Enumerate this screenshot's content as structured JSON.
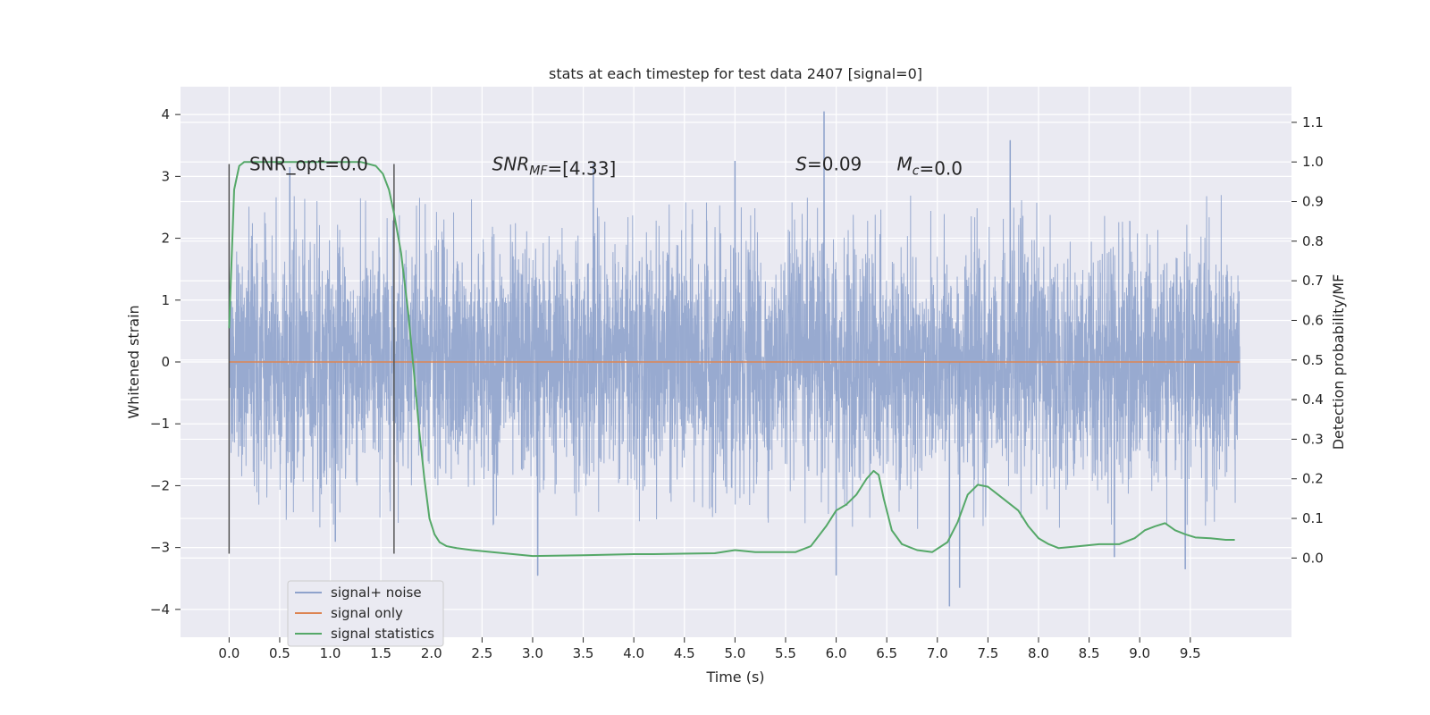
{
  "chart_data": {
    "type": "line",
    "title": "stats at each timestep for test data 2407 [signal=0]",
    "xlabel": "Time (s)",
    "ylabel_left": "Whitened strain",
    "ylabel_right": "Detection probability/MF",
    "xlim": [
      -0.48,
      10.5
    ],
    "ylim_left": [
      -4.45,
      4.45
    ],
    "ylim_right": [
      -0.2,
      1.19
    ],
    "x_ticks": [
      0.0,
      0.5,
      1.0,
      1.5,
      2.0,
      2.5,
      3.0,
      3.5,
      4.0,
      4.5,
      5.0,
      5.5,
      6.0,
      6.5,
      7.0,
      7.5,
      8.0,
      8.5,
      9.0,
      9.5
    ],
    "x_tick_labels": [
      "0.0",
      "0.5",
      "1.0",
      "1.5",
      "2.0",
      "2.5",
      "3.0",
      "3.5",
      "4.0",
      "4.5",
      "5.0",
      "5.5",
      "6.0",
      "6.5",
      "7.0",
      "7.5",
      "8.0",
      "8.5",
      "9.0",
      "9.5"
    ],
    "y_left_ticks": [
      4,
      3,
      2,
      1,
      0,
      -1,
      -2,
      -3,
      -4
    ],
    "y_left_tick_labels": [
      "4",
      "3",
      "2",
      "1",
      "0",
      "−1",
      "−2",
      "−3",
      "−4"
    ],
    "y_right_ticks": [
      1.1,
      1.0,
      0.9,
      0.8,
      0.7,
      0.6,
      0.5,
      0.4,
      0.3,
      0.2,
      0.1,
      0.0
    ],
    "y_right_tick_labels": [
      "1.1",
      "1.0",
      "0.9",
      "0.8",
      "0.7",
      "0.6",
      "0.5",
      "0.4",
      "0.3",
      "0.2",
      "0.1",
      "0.0"
    ],
    "grid": true,
    "legend_position": "lower-left",
    "series": [
      {
        "name": "signal+ noise",
        "axis": "left",
        "color": "#8fa3cc",
        "style": "noise",
        "x_range": [
          0.0,
          9.99
        ],
        "typical_envelope": [
          -2.2,
          2.2
        ],
        "peak_values": [
          {
            "x": 0.6,
            "y": 3.15
          },
          {
            "x": 1.05,
            "y": -2.9
          },
          {
            "x": 3.05,
            "y": -3.45
          },
          {
            "x": 3.6,
            "y": 3.2
          },
          {
            "x": 5.0,
            "y": 3.25
          },
          {
            "x": 5.88,
            "y": 4.05
          },
          {
            "x": 6.0,
            "y": -3.45
          },
          {
            "x": 7.12,
            "y": -3.95
          },
          {
            "x": 7.22,
            "y": -3.65
          },
          {
            "x": 7.72,
            "y": 3.58
          },
          {
            "x": 8.75,
            "y": -3.15
          },
          {
            "x": 9.45,
            "y": -3.35
          }
        ]
      },
      {
        "name": "signal only",
        "axis": "left",
        "color": "#dd8452",
        "x": [
          0.0,
          9.99
        ],
        "y": [
          0.0,
          0.0
        ]
      },
      {
        "name": "signal statistics",
        "axis": "right",
        "color": "#55a868",
        "x": [
          0.0,
          0.05,
          0.1,
          0.15,
          0.25,
          0.5,
          0.8,
          1.0,
          1.3,
          1.45,
          1.52,
          1.58,
          1.63,
          1.7,
          1.77,
          1.83,
          1.88,
          1.93,
          1.98,
          2.03,
          2.08,
          2.15,
          2.25,
          2.4,
          2.6,
          3.0,
          3.5,
          4.0,
          4.2,
          4.8,
          5.0,
          5.2,
          5.6,
          5.75,
          5.9,
          6.0,
          6.1,
          6.2,
          6.3,
          6.37,
          6.42,
          6.47,
          6.55,
          6.65,
          6.8,
          6.95,
          7.1,
          7.2,
          7.3,
          7.4,
          7.5,
          7.6,
          7.7,
          7.8,
          7.9,
          8.0,
          8.1,
          8.2,
          8.4,
          8.6,
          8.8,
          8.95,
          9.05,
          9.15,
          9.25,
          9.35,
          9.45,
          9.55,
          9.7,
          9.85,
          9.94
        ],
        "y": [
          0.58,
          0.93,
          0.99,
          1.0,
          1.0,
          1.0,
          1.0,
          1.0,
          1.0,
          0.99,
          0.97,
          0.93,
          0.87,
          0.77,
          0.62,
          0.46,
          0.32,
          0.2,
          0.1,
          0.06,
          0.04,
          0.03,
          0.025,
          0.02,
          0.015,
          0.005,
          0.007,
          0.01,
          0.01,
          0.012,
          0.02,
          0.015,
          0.015,
          0.03,
          0.08,
          0.12,
          0.135,
          0.16,
          0.2,
          0.22,
          0.21,
          0.15,
          0.07,
          0.035,
          0.02,
          0.015,
          0.04,
          0.09,
          0.16,
          0.185,
          0.18,
          0.16,
          0.14,
          0.12,
          0.08,
          0.05,
          0.035,
          0.025,
          0.03,
          0.035,
          0.035,
          0.05,
          0.07,
          0.08,
          0.088,
          0.07,
          0.06,
          0.052,
          0.05,
          0.046,
          0.046
        ]
      }
    ],
    "vertical_markers": [
      {
        "x": 0.0,
        "y_range": [
          -3.1,
          3.2
        ],
        "color": "#555555"
      },
      {
        "x": 1.63,
        "y_range": [
          -3.1,
          3.2
        ],
        "color": "#555555"
      }
    ],
    "annotations": [
      {
        "id": "snr-opt",
        "x": 0.2,
        "y": 3.1,
        "parts": [
          {
            "t": "SNR_opt=0.0"
          }
        ]
      },
      {
        "id": "snr-mf",
        "x": 2.6,
        "y": 3.1,
        "parts": [
          {
            "t": "SNR",
            "i": true
          },
          {
            "t": "MF",
            "i": true,
            "sub": true
          },
          {
            "t": "=[4.33]"
          }
        ]
      },
      {
        "id": "s-value",
        "x": 5.6,
        "y": 3.1,
        "parts": [
          {
            "t": "S",
            "i": true
          },
          {
            "t": "=0.09"
          }
        ]
      },
      {
        "id": "mc-value",
        "x": 6.6,
        "y": 3.1,
        "parts": [
          {
            "t": "M",
            "i": true
          },
          {
            "t": "c",
            "i": true,
            "sub": true
          },
          {
            "t": "=0.0"
          }
        ]
      }
    ]
  }
}
